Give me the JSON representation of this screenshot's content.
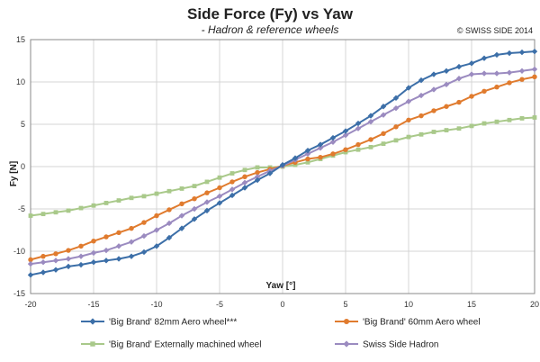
{
  "chart_data": {
    "type": "line",
    "title": "Side Force (Fy) vs Yaw",
    "subtitle": "- Hadron & reference wheels",
    "copyright": "© SWISS SIDE 2014",
    "xlabel": "Yaw [°]",
    "ylabel": "Fy [N]",
    "xlim": [
      -20,
      20
    ],
    "ylim": [
      -15,
      15
    ],
    "xticks": [
      -20,
      -15,
      -10,
      -5,
      0,
      5,
      10,
      15,
      20
    ],
    "yticks": [
      -15,
      -10,
      -5,
      0,
      5,
      10,
      15
    ],
    "grid": true,
    "legend_position": "bottom",
    "series": [
      {
        "name": "'Big Brand' 82mm Aero wheel***",
        "color": "#3c6fa8",
        "marker": "diamond",
        "x": [
          -20,
          -19,
          -18,
          -17,
          -16,
          -15,
          -14,
          -13,
          -12,
          -11,
          -10,
          -9,
          -8,
          -7,
          -6,
          -5,
          -4,
          -3,
          -2,
          -1,
          0,
          1,
          2,
          3,
          4,
          5,
          6,
          7,
          8,
          9,
          10,
          11,
          12,
          13,
          14,
          15,
          16,
          17,
          18,
          19,
          20
        ],
        "y": [
          -12.8,
          -12.5,
          -12.2,
          -11.8,
          -11.6,
          -11.3,
          -11.1,
          -10.9,
          -10.6,
          -10.1,
          -9.4,
          -8.4,
          -7.3,
          -6.2,
          -5.2,
          -4.3,
          -3.4,
          -2.5,
          -1.6,
          -0.8,
          0.2,
          1.0,
          1.9,
          2.6,
          3.4,
          4.2,
          5.1,
          6.0,
          7.1,
          8.1,
          9.3,
          10.2,
          10.9,
          11.3,
          11.8,
          12.2,
          12.8,
          13.2,
          13.4,
          13.5,
          13.6
        ]
      },
      {
        "name": "'Big Brand' 60mm Aero wheel",
        "color": "#e07b2e",
        "marker": "circle",
        "x": [
          -20,
          -19,
          -18,
          -17,
          -16,
          -15,
          -14,
          -13,
          -12,
          -11,
          -10,
          -9,
          -8,
          -7,
          -6,
          -5,
          -4,
          -3,
          -2,
          -1,
          0,
          1,
          2,
          3,
          4,
          5,
          6,
          7,
          8,
          9,
          10,
          11,
          12,
          13,
          14,
          15,
          16,
          17,
          18,
          19,
          20
        ],
        "y": [
          -11.0,
          -10.6,
          -10.3,
          -9.9,
          -9.4,
          -8.8,
          -8.3,
          -7.8,
          -7.3,
          -6.6,
          -5.8,
          -5.1,
          -4.4,
          -3.8,
          -3.1,
          -2.5,
          -1.8,
          -1.2,
          -0.7,
          -0.3,
          0.1,
          0.5,
          0.9,
          1.1,
          1.5,
          2.0,
          2.6,
          3.2,
          3.9,
          4.7,
          5.5,
          6.0,
          6.6,
          7.1,
          7.6,
          8.3,
          8.9,
          9.4,
          9.9,
          10.3,
          10.6
        ]
      },
      {
        "name": "'Big Brand' Externally machined wheel",
        "color": "#a9c98a",
        "marker": "square",
        "x": [
          -20,
          -19,
          -18,
          -17,
          -16,
          -15,
          -14,
          -13,
          -12,
          -11,
          -10,
          -9,
          -8,
          -7,
          -6,
          -5,
          -4,
          -3,
          -2,
          -1,
          0,
          1,
          2,
          3,
          4,
          5,
          6,
          7,
          8,
          9,
          10,
          11,
          12,
          13,
          14,
          15,
          16,
          17,
          18,
          19,
          20
        ],
        "y": [
          -5.8,
          -5.6,
          -5.4,
          -5.2,
          -4.9,
          -4.6,
          -4.3,
          -4.0,
          -3.7,
          -3.5,
          -3.2,
          -2.9,
          -2.6,
          -2.3,
          -1.8,
          -1.3,
          -0.8,
          -0.4,
          -0.1,
          -0.1,
          0.0,
          0.2,
          0.5,
          0.9,
          1.3,
          1.7,
          2.0,
          2.3,
          2.7,
          3.1,
          3.5,
          3.8,
          4.1,
          4.3,
          4.5,
          4.8,
          5.1,
          5.3,
          5.5,
          5.7,
          5.8
        ]
      },
      {
        "name": "Swiss Side Hadron",
        "color": "#9b8bc0",
        "marker": "diamond",
        "x": [
          -20,
          -19,
          -18,
          -17,
          -16,
          -15,
          -14,
          -13,
          -12,
          -11,
          -10,
          -9,
          -8,
          -7,
          -6,
          -5,
          -4,
          -3,
          -2,
          -1,
          0,
          1,
          2,
          3,
          4,
          5,
          6,
          7,
          8,
          9,
          10,
          11,
          12,
          13,
          14,
          15,
          16,
          17,
          18,
          19,
          20
        ],
        "y": [
          -11.5,
          -11.3,
          -11.1,
          -10.9,
          -10.6,
          -10.2,
          -9.9,
          -9.4,
          -8.9,
          -8.2,
          -7.5,
          -6.7,
          -5.8,
          -5.0,
          -4.2,
          -3.5,
          -2.7,
          -1.9,
          -1.2,
          -0.5,
          0.1,
          0.8,
          1.5,
          2.2,
          2.9,
          3.7,
          4.5,
          5.3,
          6.1,
          6.9,
          7.7,
          8.4,
          9.1,
          9.7,
          10.4,
          10.9,
          11.0,
          11.0,
          11.1,
          11.3,
          11.5
        ]
      }
    ]
  }
}
